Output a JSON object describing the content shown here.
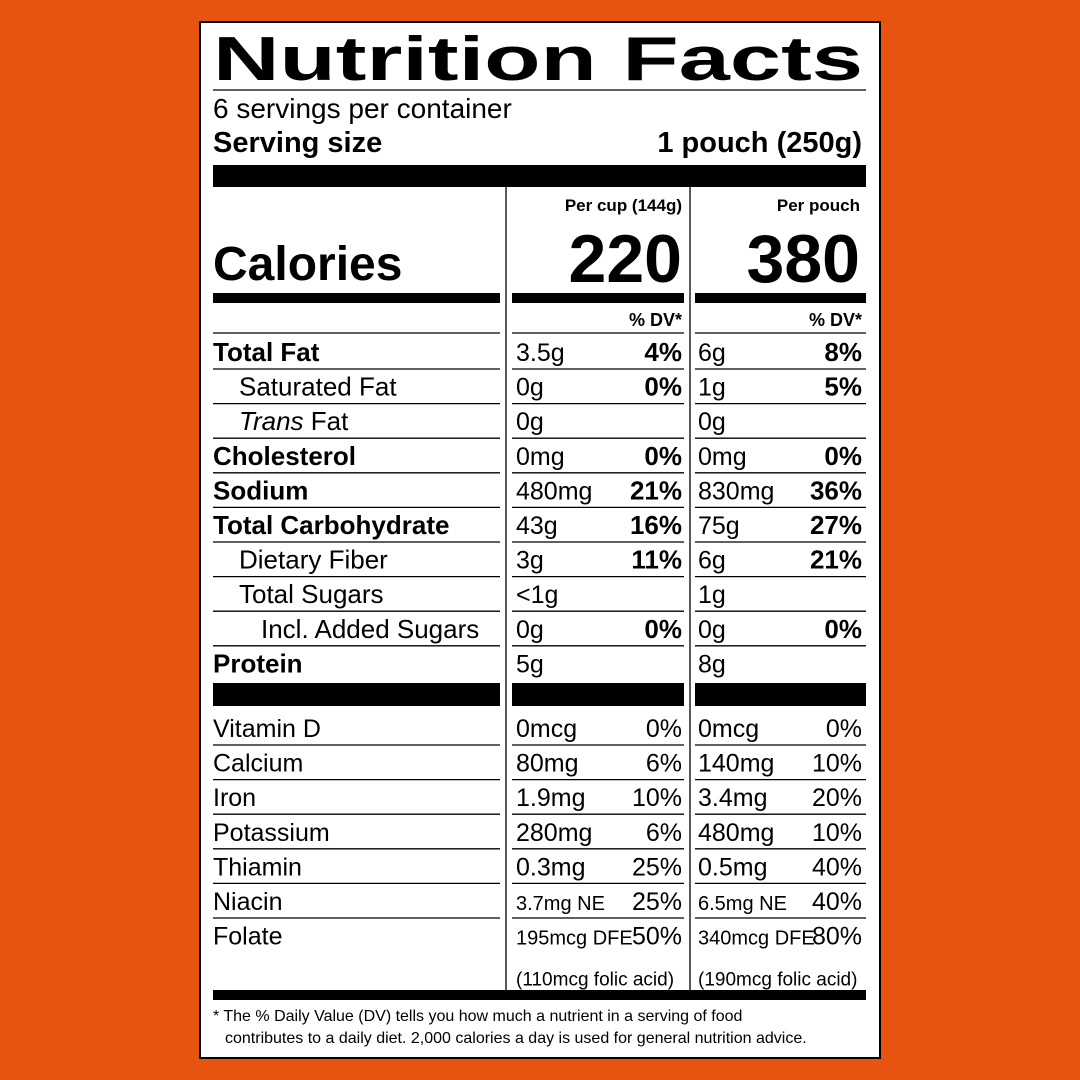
{
  "title": "Nutrition Facts",
  "servings": "6 servings per container",
  "serving_size": {
    "label": "Serving size",
    "value": "1 pouch (250g)"
  },
  "calories": {
    "label": "Calories",
    "per_cup": {
      "header": "Per cup (144g)",
      "value": "220"
    },
    "per_pouch": {
      "header": "Per pouch",
      "value": "380"
    }
  },
  "dv_header": {
    "per_cup": "% DV*",
    "per_pouch": "% DV*"
  },
  "nutrients": [
    {
      "name": "Total Fat",
      "level": 0,
      "per_cup": {
        "amount": "3.5g",
        "dv": "4%"
      },
      "per_pouch": {
        "amount": "6g",
        "dv": "8%"
      }
    },
    {
      "name": "Saturated Fat",
      "level": 1,
      "per_cup": {
        "amount": "0g",
        "dv": "0%"
      },
      "per_pouch": {
        "amount": "1g",
        "dv": "5%"
      }
    },
    {
      "name_italic": "Trans",
      "name": "Fat",
      "level": 1,
      "per_cup": {
        "amount": "0g"
      },
      "per_pouch": {
        "amount": "0g"
      }
    },
    {
      "name": "Cholesterol",
      "level": 0,
      "per_cup": {
        "amount": "0mg",
        "dv": "0%"
      },
      "per_pouch": {
        "amount": "0mg",
        "dv": "0%"
      }
    },
    {
      "name": "Sodium",
      "level": 0,
      "per_cup": {
        "amount": "480mg",
        "dv": "21%"
      },
      "per_pouch": {
        "amount": "830mg",
        "dv": "36%"
      }
    },
    {
      "name": "Total Carbohydrate",
      "level": 0,
      "per_cup": {
        "amount": "43g",
        "dv": "16%"
      },
      "per_pouch": {
        "amount": "75g",
        "dv": "27%"
      }
    },
    {
      "name": "Dietary Fiber",
      "level": 1,
      "per_cup": {
        "amount": "3g",
        "dv": "11%"
      },
      "per_pouch": {
        "amount": "6g",
        "dv": "21%"
      }
    },
    {
      "name": "Total Sugars",
      "level": 1,
      "per_cup": {
        "amount": "<1g"
      },
      "per_pouch": {
        "amount": "1g"
      }
    },
    {
      "name": "Incl. Added Sugars",
      "level": 2,
      "per_cup": {
        "amount": "0g",
        "dv": "0%"
      },
      "per_pouch": {
        "amount": "0g",
        "dv": "0%"
      }
    },
    {
      "name": "Protein",
      "level": 0,
      "per_cup": {
        "amount": "5g"
      },
      "per_pouch": {
        "amount": "8g"
      }
    }
  ],
  "vitamins": [
    {
      "name": "Vitamin D",
      "per_cup": {
        "amount": "0mcg",
        "dv": "0%"
      },
      "per_pouch": {
        "amount": "0mcg",
        "dv": "0%"
      }
    },
    {
      "name": "Calcium",
      "per_cup": {
        "amount": "80mg",
        "dv": "6%"
      },
      "per_pouch": {
        "amount": "140mg",
        "dv": "10%"
      }
    },
    {
      "name": "Iron",
      "per_cup": {
        "amount": "1.9mg",
        "dv": "10%"
      },
      "per_pouch": {
        "amount": "3.4mg",
        "dv": "20%"
      }
    },
    {
      "name": "Potassium",
      "per_cup": {
        "amount": "280mg",
        "dv": "6%"
      },
      "per_pouch": {
        "amount": "480mg",
        "dv": "10%"
      }
    },
    {
      "name": "Thiamin",
      "per_cup": {
        "amount": "0.3mg",
        "dv": "25%"
      },
      "per_pouch": {
        "amount": "0.5mg",
        "dv": "40%"
      }
    },
    {
      "name": "Niacin",
      "condensed": true,
      "per_cup": {
        "amount": "3.7mg NE",
        "dv": "25%"
      },
      "per_pouch": {
        "amount": "6.5mg NE",
        "dv": "40%"
      }
    },
    {
      "name": "Folate",
      "condensed": true,
      "per_cup": {
        "amount": "195mcg DFE",
        "dv": "50%",
        "note": "(110mcg folic acid)"
      },
      "per_pouch": {
        "amount": "340mcg DFE",
        "dv": "80%",
        "note": "(190mcg folic acid)"
      }
    }
  ],
  "footnote": [
    "* The % Daily Value (DV) tells you how much a nutrient in a serving of food",
    "contributes to a daily diet. 2,000 calories a day is used for general nutrition advice."
  ]
}
